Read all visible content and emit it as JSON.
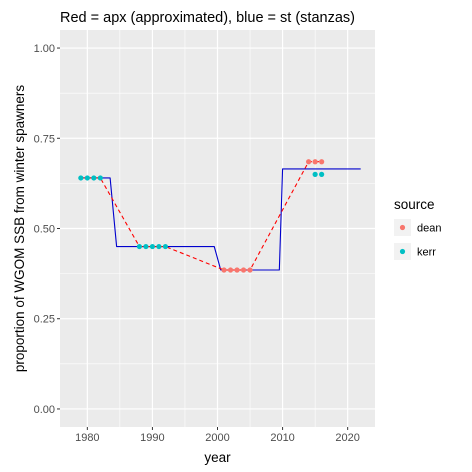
{
  "chart_data": {
    "type": "scatter",
    "title": "Red = apx (approximated), blue = st (stanzas)",
    "xlabel": "year",
    "ylabel": "proportion of WGOM SSB from winter spawners",
    "xlim": [
      1975.8,
      2024.2
    ],
    "ylim": [
      -0.05,
      1.05
    ],
    "x_ticks": [
      1980,
      1990,
      2000,
      2010,
      2020
    ],
    "x_tick_labels": [
      "1980",
      "1990",
      "2000",
      "2010",
      "2020"
    ],
    "y_ticks": [
      0,
      0.25,
      0.5,
      0.75,
      1.0
    ],
    "y_tick_labels": [
      "0.00",
      "0.25",
      "0.50",
      "0.75",
      "1.00"
    ],
    "grid": true,
    "legend": {
      "title": "source",
      "position": "right",
      "entries": [
        {
          "label": "dean",
          "color": "#F8766D"
        },
        {
          "label": "kerr",
          "color": "#00BFC4"
        }
      ]
    },
    "series": [
      {
        "source": "kerr",
        "color": "#00BFC4",
        "points": [
          {
            "x": 1979,
            "y": 0.64
          },
          {
            "x": 1980,
            "y": 0.64
          },
          {
            "x": 1981,
            "y": 0.64
          },
          {
            "x": 1982,
            "y": 0.64
          },
          {
            "x": 1988,
            "y": 0.45
          },
          {
            "x": 1989,
            "y": 0.45
          },
          {
            "x": 1990,
            "y": 0.45
          },
          {
            "x": 1991,
            "y": 0.45
          },
          {
            "x": 1992,
            "y": 0.45
          },
          {
            "x": 2015,
            "y": 0.65
          },
          {
            "x": 2016,
            "y": 0.65
          }
        ]
      },
      {
        "source": "dean",
        "color": "#F8766D",
        "points": [
          {
            "x": 2001,
            "y": 0.385
          },
          {
            "x": 2002,
            "y": 0.385
          },
          {
            "x": 2003,
            "y": 0.385
          },
          {
            "x": 2004,
            "y": 0.385
          },
          {
            "x": 2005,
            "y": 0.385
          },
          {
            "x": 2014,
            "y": 0.685
          },
          {
            "x": 2015,
            "y": 0.685
          },
          {
            "x": 2016,
            "y": 0.685
          }
        ]
      }
    ],
    "lines": [
      {
        "label": "apx",
        "color": "#FF0000",
        "style": "dashed",
        "points": [
          {
            "x": 1979,
            "y": 0.64
          },
          {
            "x": 1982,
            "y": 0.64
          },
          {
            "x": 1988,
            "y": 0.45
          },
          {
            "x": 1992,
            "y": 0.45
          },
          {
            "x": 2001,
            "y": 0.385
          },
          {
            "x": 2005,
            "y": 0.385
          },
          {
            "x": 2014,
            "y": 0.685
          },
          {
            "x": 2016,
            "y": 0.685
          }
        ]
      },
      {
        "label": "st",
        "color": "#0000CD",
        "style": "solid",
        "points": [
          {
            "x": 1979,
            "y": 0.64
          },
          {
            "x": 1983.5,
            "y": 0.64
          },
          {
            "x": 1984.5,
            "y": 0.45
          },
          {
            "x": 1999.5,
            "y": 0.45
          },
          {
            "x": 2000.5,
            "y": 0.385
          },
          {
            "x": 2009.5,
            "y": 0.385
          },
          {
            "x": 2010,
            "y": 0.665
          },
          {
            "x": 2022,
            "y": 0.665
          }
        ]
      }
    ]
  }
}
